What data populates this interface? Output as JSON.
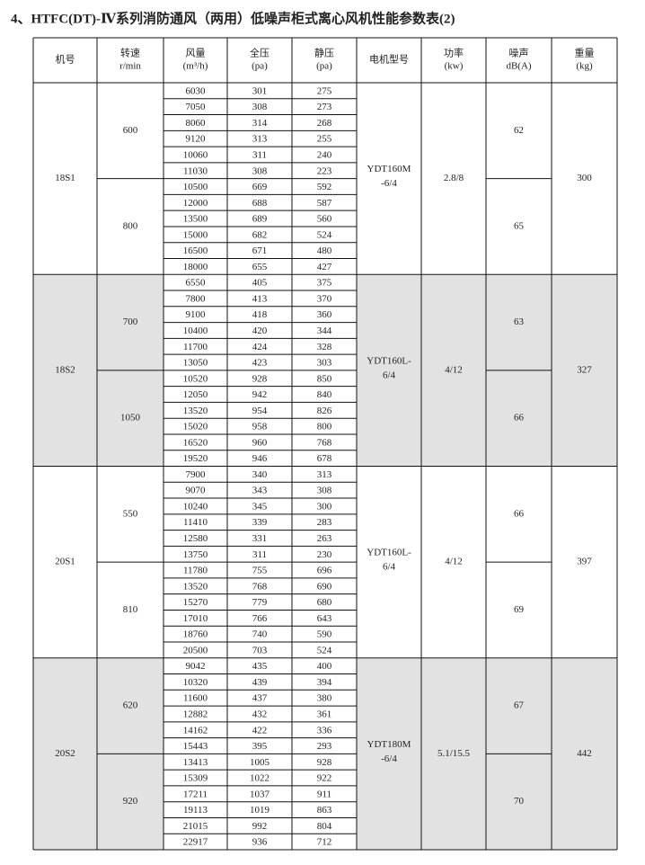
{
  "title": "4、HTFC(DT)-Ⅳ系列消防通风（两用）低噪声柜式离心风机性能参数表(2)",
  "table": {
    "header": [
      [
        "机号"
      ],
      [
        "转速",
        "r/min"
      ],
      [
        "风量",
        "(m³/h)"
      ],
      [
        "全压",
        "(pa)"
      ],
      [
        "静压",
        "(pa)"
      ],
      [
        "电机型号"
      ],
      [
        "功率",
        "(kw)"
      ],
      [
        "噪声",
        "dB(A)"
      ],
      [
        "重量",
        "(kg)"
      ]
    ],
    "groups": [
      {
        "model": "18S1",
        "motor": [
          "YDT160M",
          "-6/4"
        ],
        "power": "2.8/8",
        "weight": 300,
        "speeds": [
          {
            "rpm": 600,
            "noise": 62,
            "rows": [
              [
                6030,
                301,
                275
              ],
              [
                7050,
                308,
                273
              ],
              [
                8060,
                314,
                268
              ],
              [
                9120,
                313,
                255
              ],
              [
                10060,
                311,
                240
              ],
              [
                11030,
                308,
                223
              ]
            ]
          },
          {
            "rpm": 800,
            "noise": 65,
            "rows": [
              [
                10500,
                669,
                592
              ],
              [
                12000,
                688,
                587
              ],
              [
                13500,
                689,
                560
              ],
              [
                15000,
                682,
                524
              ],
              [
                16500,
                671,
                480
              ],
              [
                18000,
                655,
                427
              ]
            ]
          }
        ]
      },
      {
        "model": "18S2",
        "motor": [
          "YDT160L-",
          "6/4"
        ],
        "power": "4/12",
        "weight": 327,
        "speeds": [
          {
            "rpm": 700,
            "noise": 63,
            "rows": [
              [
                6550,
                405,
                375
              ],
              [
                7800,
                413,
                370
              ],
              [
                9100,
                418,
                360
              ],
              [
                10400,
                420,
                344
              ],
              [
                11700,
                424,
                328
              ],
              [
                13050,
                423,
                303
              ]
            ]
          },
          {
            "rpm": 1050,
            "noise": 66,
            "rows": [
              [
                10520,
                928,
                850
              ],
              [
                12050,
                942,
                840
              ],
              [
                13520,
                954,
                826
              ],
              [
                15020,
                958,
                800
              ],
              [
                16520,
                960,
                768
              ],
              [
                19520,
                946,
                678
              ]
            ]
          }
        ]
      },
      {
        "model": "20S1",
        "motor": [
          "YDT160L-",
          "6/4"
        ],
        "power": "4/12",
        "weight": 397,
        "speeds": [
          {
            "rpm": 550,
            "noise": 66,
            "rows": [
              [
                7900,
                340,
                313
              ],
              [
                9070,
                343,
                308
              ],
              [
                10240,
                345,
                300
              ],
              [
                11410,
                339,
                283
              ],
              [
                12580,
                331,
                263
              ],
              [
                13750,
                311,
                230
              ]
            ]
          },
          {
            "rpm": 810,
            "noise": 69,
            "rows": [
              [
                11780,
                755,
                696
              ],
              [
                13520,
                768,
                690
              ],
              [
                15270,
                779,
                680
              ],
              [
                17010,
                766,
                643
              ],
              [
                18760,
                740,
                590
              ],
              [
                20500,
                703,
                524
              ]
            ]
          }
        ]
      },
      {
        "model": "20S2",
        "motor": [
          "YDT180M",
          "-6/4"
        ],
        "power": "5.1/15.5",
        "weight": 442,
        "speeds": [
          {
            "rpm": 620,
            "noise": 67,
            "rows": [
              [
                9042,
                435,
                400
              ],
              [
                10320,
                439,
                394
              ],
              [
                11600,
                437,
                380
              ],
              [
                12882,
                432,
                361
              ],
              [
                14162,
                422,
                336
              ],
              [
                15443,
                395,
                293
              ]
            ]
          },
          {
            "rpm": 920,
            "noise": 70,
            "rows": [
              [
                13413,
                1005,
                928
              ],
              [
                15309,
                1022,
                922
              ],
              [
                17211,
                1037,
                911
              ],
              [
                19113,
                1019,
                863
              ],
              [
                21015,
                992,
                804
              ],
              [
                22917,
                936,
                712
              ]
            ]
          }
        ]
      }
    ]
  }
}
